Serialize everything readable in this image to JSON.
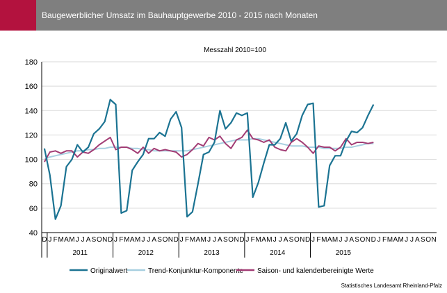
{
  "header": {
    "title": "Baugewerblicher Umsatz im Bauhauptgewerbe 2010 - 2015 nach Monaten"
  },
  "colors": {
    "accent": "#b3123e",
    "header_band": "#7f7f7f",
    "originalwert": "#1b7392",
    "trend": "#a7cfe0",
    "saison": "#a23c74"
  },
  "source": "Statistisches Landesamt Rheinland-Pfalz",
  "chart_data": {
    "type": "line",
    "title": "Baugewerblicher Umsatz im Bauhauptgewerbe 2010 - 2015 nach Monaten",
    "subtitle": "Messzahl 2010=100",
    "ylim": [
      40,
      180
    ],
    "yticks": [
      40,
      60,
      80,
      100,
      120,
      140,
      160,
      180
    ],
    "grid": "horizontal",
    "legend_position": "bottom",
    "x_month_labels": [
      "D",
      "J",
      "F",
      "M",
      "A",
      "M",
      "J",
      "J",
      "A",
      "S",
      "O",
      "N",
      "D",
      "J",
      "F",
      "M",
      "A",
      "M",
      "J",
      "J",
      "A",
      "S",
      "O",
      "N",
      "D",
      "J",
      "F",
      "M",
      "A",
      "M",
      "J",
      "J",
      "A",
      "S",
      "O",
      "N",
      "D",
      "J",
      "F",
      "M",
      "A",
      "M",
      "J",
      "J",
      "A",
      "S",
      "O",
      "N",
      "D",
      "J",
      "F",
      "M",
      "A",
      "M",
      "J",
      "J",
      "A",
      "S",
      "O",
      "N",
      "D",
      "J",
      "F",
      "M",
      "A",
      "M",
      "J",
      "J",
      "A",
      "S",
      "O",
      "N"
    ],
    "x_year_groups": [
      {
        "label": "2011",
        "start": 1,
        "end": 12
      },
      {
        "label": "2012",
        "start": 13,
        "end": 24
      },
      {
        "label": "2013",
        "start": 25,
        "end": 36
      },
      {
        "label": "2014",
        "start": 37,
        "end": 48
      },
      {
        "label": "2015",
        "start": 49,
        "end": 60
      }
    ],
    "series": [
      {
        "name": "Originalwert",
        "color": "#1b7392",
        "values": [
          109,
          87,
          51,
          62,
          94,
          100,
          112,
          106,
          110,
          121,
          125,
          131,
          149,
          145,
          56,
          58,
          91,
          98,
          104,
          117,
          117,
          122,
          119,
          133,
          139,
          126,
          53,
          57,
          80,
          104,
          106,
          114,
          140,
          125,
          130,
          138,
          136,
          138,
          69,
          81,
          97,
          112,
          112,
          117,
          130,
          115,
          121,
          136,
          145,
          146,
          61,
          62,
          95,
          103,
          103,
          115,
          123,
          122,
          126,
          136,
          145
        ]
      },
      {
        "name": "Trend-Konjunktur-Komponente",
        "color": "#a7cfe0",
        "values": [
          100,
          102,
          103,
          104,
          105,
          106,
          107,
          107,
          108,
          108,
          109,
          109,
          110,
          110,
          110,
          110,
          109,
          109,
          108,
          108,
          107,
          107,
          107,
          107,
          107,
          107,
          107,
          108,
          109,
          110,
          111,
          112,
          113,
          114,
          115,
          116,
          116,
          116,
          117,
          117,
          116,
          115,
          114,
          113,
          112,
          111,
          111,
          111,
          110,
          110,
          110,
          109,
          109,
          109,
          109,
          110,
          110,
          111,
          112,
          113,
          113
        ]
      },
      {
        "name": "Saison- und kalenderbereinigte Werte",
        "color": "#a23c74",
        "values": [
          98,
          106,
          107,
          105,
          107,
          107,
          102,
          106,
          105,
          108,
          112,
          115,
          118,
          108,
          110,
          110,
          108,
          105,
          110,
          105,
          109,
          107,
          108,
          107,
          106,
          102,
          104,
          108,
          113,
          111,
          118,
          116,
          119,
          113,
          109,
          116,
          118,
          124,
          117,
          116,
          114,
          116,
          110,
          108,
          107,
          114,
          117,
          114,
          110,
          105,
          111,
          110,
          110,
          107,
          110,
          117,
          112,
          114,
          114,
          113,
          114
        ]
      }
    ]
  }
}
